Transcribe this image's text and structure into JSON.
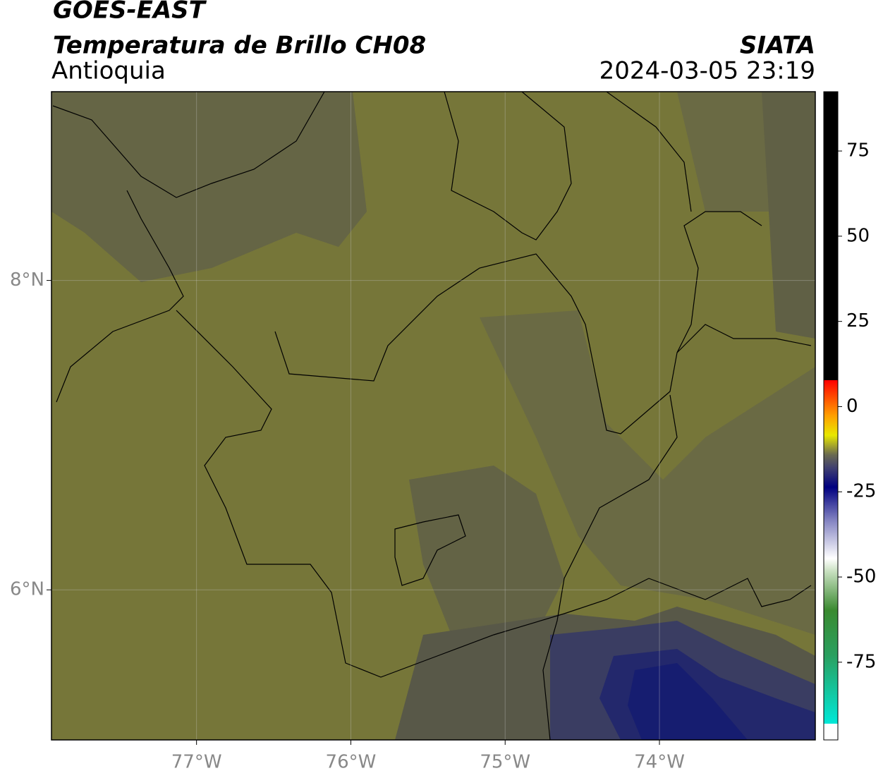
{
  "header": {
    "title": "GOES-EAST",
    "subtitle": "Temperatura de Brillo CH08",
    "region": "Antioquia",
    "source": "SIATA",
    "datetime": "2024-03-05 23:19"
  },
  "map": {
    "xlim": [
      -77.94,
      -72.99
    ],
    "ylim": [
      5.03,
      9.22
    ],
    "xticks": [
      {
        "value": -77,
        "label": "77°W"
      },
      {
        "value": -76,
        "label": "76°W"
      },
      {
        "value": -75,
        "label": "75°W"
      },
      {
        "value": -74,
        "label": "74°W"
      }
    ],
    "yticks": [
      {
        "value": 8,
        "label": "8°N"
      },
      {
        "value": 6,
        "label": "6°N"
      }
    ],
    "grid": true
  },
  "colorbar": {
    "lim": [
      -97.8,
      92.4
    ],
    "ticks": [
      75,
      50,
      25,
      0,
      -25,
      -50,
      -75
    ]
  }
}
